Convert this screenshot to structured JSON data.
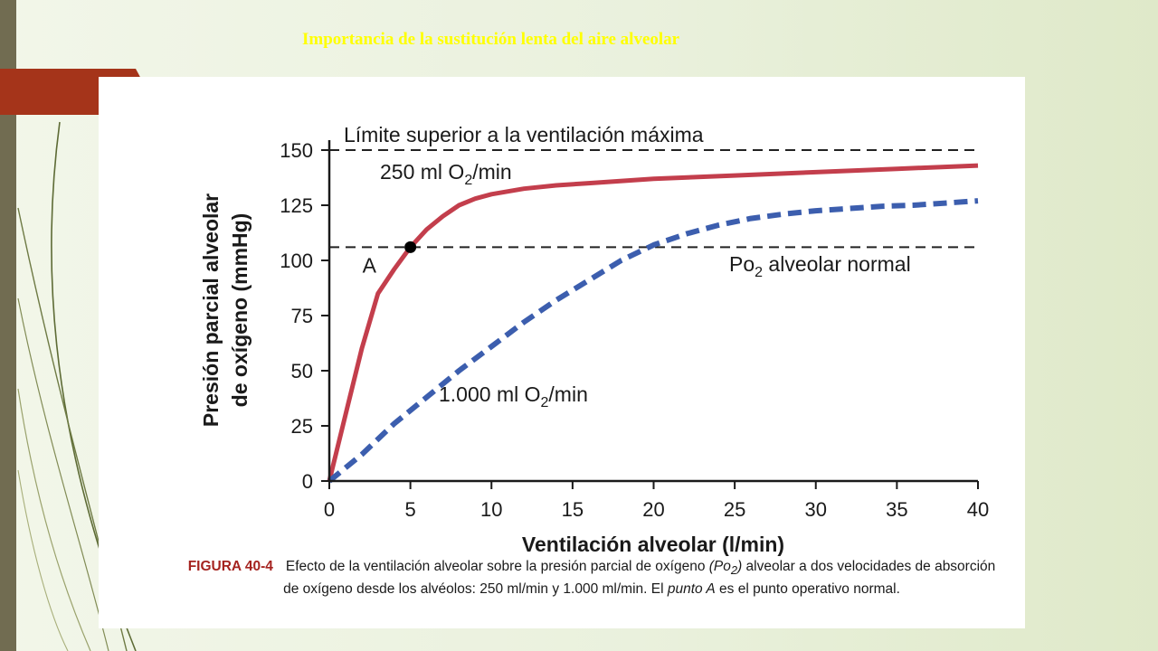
{
  "slide": {
    "title": "Importancia de la sustitución lenta del aire alveolar"
  },
  "figure": {
    "caption_label": "FIGURA 40-4",
    "caption_text_1": "Efecto de la ventilación alveolar sobre la presión parcial de oxígeno",
    "caption_symbol": "(Po",
    "caption_symbol_sub": "2",
    "caption_symbol_close": ")",
    "caption_text_2": "alveolar a dos velocidades de absorción de oxígeno desde los alvéolos: 250 ml/min y 1.000 ml/min. El",
    "caption_point": "punto A",
    "caption_text_3": "es el punto operativo normal."
  },
  "colors": {
    "slide_title": "#ffff00",
    "left_bar": "#716c51",
    "accent_tab": "#a5341a",
    "curve_250": "#c33e4c",
    "curve_1000": "#3c5eae",
    "caption_label": "#a52420"
  },
  "chart_data": {
    "type": "line",
    "xlabel": "Ventilación alveolar (l/min)",
    "ylabel_line1": "Presión parcial alveolar",
    "ylabel_line2": "de oxígeno (mmHg)",
    "xlim": [
      0,
      40
    ],
    "ylim": [
      0,
      150
    ],
    "x_ticks": [
      0,
      5,
      10,
      15,
      20,
      25,
      30,
      35,
      40
    ],
    "y_ticks": [
      0,
      25,
      50,
      75,
      100,
      125,
      150
    ],
    "grid": false,
    "reference_lines": [
      {
        "y": 150,
        "label": "Límite superior a la ventilación máxima"
      },
      {
        "y": 106,
        "label_main": "Po",
        "label_sub": "2",
        "label_rest": " alveolar normal"
      }
    ],
    "series": [
      {
        "label_main": "250 ml O",
        "label_sub": "2",
        "label_rest": "/min",
        "style": "solid",
        "points": [
          [
            0,
            0
          ],
          [
            1,
            30
          ],
          [
            2,
            60
          ],
          [
            3,
            85
          ],
          [
            4,
            96
          ],
          [
            5,
            106
          ],
          [
            6,
            114
          ],
          [
            7,
            120
          ],
          [
            8,
            125
          ],
          [
            9,
            128
          ],
          [
            10,
            130
          ],
          [
            12,
            132.5
          ],
          [
            14,
            134
          ],
          [
            16,
            135
          ],
          [
            20,
            137
          ],
          [
            25,
            138.5
          ],
          [
            30,
            140
          ],
          [
            35,
            141.5
          ],
          [
            40,
            143
          ]
        ]
      },
      {
        "label_main": "1.000 ml O",
        "label_sub": "2",
        "label_rest": "/min",
        "style": "dashed",
        "points": [
          [
            0,
            0
          ],
          [
            2,
            12
          ],
          [
            4,
            26
          ],
          [
            6,
            38
          ],
          [
            8,
            50
          ],
          [
            10,
            61
          ],
          [
            12,
            72
          ],
          [
            14,
            82
          ],
          [
            16,
            91
          ],
          [
            18,
            100
          ],
          [
            20,
            107
          ],
          [
            22,
            112
          ],
          [
            24,
            116
          ],
          [
            26,
            119
          ],
          [
            28,
            121
          ],
          [
            30,
            122.5
          ],
          [
            32,
            123.5
          ],
          [
            34,
            124.5
          ],
          [
            36,
            125
          ],
          [
            38,
            126
          ],
          [
            40,
            127
          ]
        ]
      }
    ],
    "annotations": [
      {
        "type": "point",
        "x": 5,
        "y": 106,
        "label": "A"
      }
    ]
  }
}
